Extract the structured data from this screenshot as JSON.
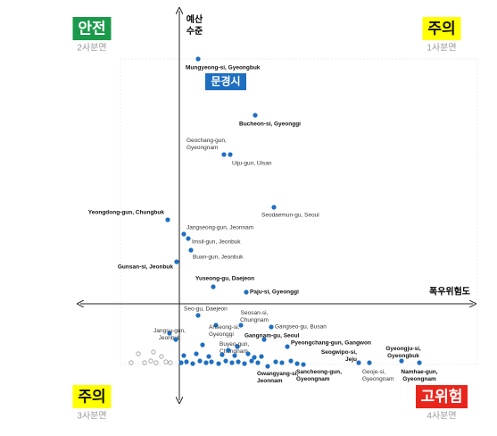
{
  "chart_data": {
    "type": "scatter",
    "x_label": "폭우위험도",
    "y_label": "예산 수준",
    "xlim": [
      -11,
      33
    ],
    "ylim": [
      -11,
      32
    ],
    "highlight": "문경시",
    "quadrants": [
      {
        "label": "안전",
        "sub": "2사분면",
        "color": "#1a9a4a"
      },
      {
        "label": "주의",
        "sub": "1사분면",
        "color": "#ffff00"
      },
      {
        "label": "주의",
        "sub": "3사분면",
        "color": "#ffff00"
      },
      {
        "label": "고위험",
        "sub": "4사분면",
        "color": "#e8261c"
      }
    ],
    "series": [
      {
        "color": "#1f6fc1",
        "labels": [
          "Mungyeong-si, Gyeongbuk",
          "Bucheon-si, Gyeonggi",
          "Geochang-gun, Gyeongnam",
          "Uiju-gun, Ulsan",
          "Seodaemun-gu, Seoul",
          "Yeongdong-gun, Chungbuk",
          "Jangseong-gun, Jeonnam",
          "Imsil-gun, Jeonbuk",
          "Buan-gun, Jeonbuk",
          "Gunsan-si, Jeonbuk",
          "Yuseong-gu, Daejeon",
          "Paju-si, Gyeonggi",
          "Seo-gu, Daejeon",
          "Seosan-si, Chungnam",
          "Gangseo-gu, Busan",
          "Jangsu-gun, Jeonbuk",
          "Anseong-si, Gyeonggi",
          "Gangnam-gu, Seoul",
          "Buyeo-gun, Chungnam",
          "Pyeongchang-gun, Gangwon",
          "Seogwipo-si, Jeju",
          "Gyeongju-si, Gyeongbuk",
          "Geoje-si, Gyeongnam",
          "Namhae-gun, Gyeongnam",
          "Gwangyang-si, Jeonnam",
          "Sancheong-gun, Gyeongnam",
          null,
          null,
          null,
          null,
          null,
          null,
          null,
          null,
          null,
          null,
          null,
          null,
          null,
          null,
          null,
          null,
          null,
          null,
          null,
          null,
          null,
          null,
          null,
          null,
          null,
          null,
          null,
          null
        ],
        "x": [
          2.1,
          8.5,
          5.0,
          5.7,
          10.6,
          -1.3,
          0.5,
          1.0,
          1.3,
          -0.3,
          3.8,
          7.5,
          2.1,
          6.9,
          10.3,
          -1.1,
          4.1,
          9.5,
          6.5,
          12.1,
          20.1,
          24.9,
          21.3,
          26.9,
          9.9,
          13.9,
          0.2,
          0.8,
          1.5,
          2.3,
          3.0,
          3.6,
          4.4,
          5.2,
          5.9,
          6.6,
          7.3,
          8.1,
          8.8,
          10.8,
          11.5,
          12.5,
          13.2,
          0.5,
          1.9,
          3.3,
          4.8,
          6.2,
          7.7,
          9.2,
          2.6,
          5.5,
          8.4,
          -0.4
        ],
        "y": [
          27.4,
          21.1,
          16.7,
          16.7,
          10.8,
          9.4,
          7.8,
          7.3,
          6.0,
          4.7,
          1.9,
          1.3,
          -1.3,
          -2.4,
          -2.6,
          -3.3,
          -2.4,
          -4.0,
          -4.8,
          -4.8,
          -6.6,
          -6.4,
          -6.6,
          -6.6,
          -7.0,
          -6.8,
          -6.6,
          -6.5,
          -6.7,
          -6.4,
          -6.6,
          -6.5,
          -6.7,
          -6.4,
          -6.6,
          -6.5,
          -6.7,
          -6.4,
          -6.6,
          -6.5,
          -6.6,
          -6.4,
          -6.7,
          -5.8,
          -5.6,
          -5.9,
          -5.7,
          -5.8,
          -5.6,
          -5.9,
          -4.6,
          -5.2,
          -6.0,
          -4.0
        ]
      },
      {
        "color": "#999999",
        "hollow": true,
        "x": [
          -4.6,
          -3.9,
          -3.2,
          -2.6,
          -2.0,
          -1.5,
          -1.0,
          -5.4,
          -2.9
        ],
        "y": [
          -5.6,
          -6.6,
          -6.4,
          -6.6,
          -5.9,
          -6.5,
          -6.6,
          -6.6,
          -5.4
        ]
      }
    ]
  }
}
